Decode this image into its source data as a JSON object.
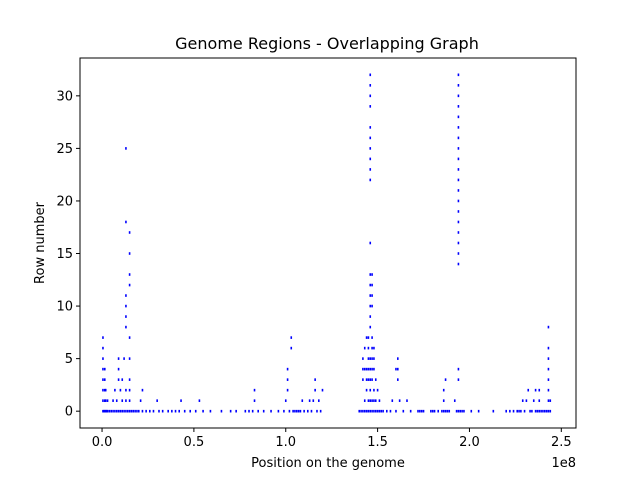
{
  "chart_data": {
    "type": "scatter",
    "title": "Genome Regions - Overlapping Graph",
    "xlabel": "Position on the genome",
    "ylabel": "Row number",
    "x_offset_label": "1e8",
    "x_ticks": [
      0.0,
      0.5,
      1.0,
      1.5,
      2.0,
      2.5
    ],
    "x_tick_labels": [
      "0.0",
      "0.5",
      "1.0",
      "1.5",
      "2.0",
      "2.5"
    ],
    "y_ticks": [
      0,
      5,
      10,
      15,
      20,
      25,
      30
    ],
    "y_tick_labels": [
      "0",
      "5",
      "10",
      "15",
      "20",
      "25",
      "30"
    ],
    "xlim": [
      -0.12,
      2.58
    ],
    "ylim": [
      -1.6,
      33.6
    ],
    "grid": false,
    "marker_color": "#0000ff",
    "series": [
      {
        "points": [
          [
            0.005,
            0
          ],
          [
            0.01,
            0
          ],
          [
            0.015,
            0
          ],
          [
            0.02,
            0
          ],
          [
            0.025,
            0
          ],
          [
            0.03,
            0
          ],
          [
            0.04,
            0
          ],
          [
            0.05,
            0
          ],
          [
            0.06,
            0
          ],
          [
            0.07,
            0
          ],
          [
            0.08,
            0
          ],
          [
            0.09,
            0
          ],
          [
            0.1,
            0
          ],
          [
            0.11,
            0
          ],
          [
            0.12,
            0
          ],
          [
            0.13,
            0
          ],
          [
            0.14,
            0
          ],
          [
            0.15,
            0
          ],
          [
            0.16,
            0
          ],
          [
            0.17,
            0
          ],
          [
            0.005,
            1
          ],
          [
            0.005,
            2
          ],
          [
            0.005,
            3
          ],
          [
            0.005,
            4
          ],
          [
            0.005,
            5
          ],
          [
            0.005,
            6
          ],
          [
            0.005,
            7
          ],
          [
            0.015,
            1
          ],
          [
            0.015,
            2
          ],
          [
            0.015,
            3
          ],
          [
            0.015,
            4
          ],
          [
            0.02,
            1
          ],
          [
            0.02,
            2
          ],
          [
            0.03,
            1
          ],
          [
            0.06,
            1
          ],
          [
            0.07,
            2
          ],
          [
            0.08,
            1
          ],
          [
            0.09,
            3
          ],
          [
            0.09,
            4
          ],
          [
            0.09,
            5
          ],
          [
            0.1,
            2
          ],
          [
            0.11,
            1
          ],
          [
            0.11,
            3
          ],
          [
            0.12,
            5
          ],
          [
            0.13,
            1
          ],
          [
            0.13,
            2
          ],
          [
            0.13,
            8
          ],
          [
            0.13,
            9
          ],
          [
            0.13,
            10
          ],
          [
            0.13,
            11
          ],
          [
            0.13,
            18
          ],
          [
            0.13,
            25
          ],
          [
            0.15,
            1
          ],
          [
            0.15,
            2
          ],
          [
            0.15,
            3
          ],
          [
            0.15,
            5
          ],
          [
            0.15,
            7
          ],
          [
            0.15,
            12
          ],
          [
            0.15,
            13
          ],
          [
            0.15,
            15
          ],
          [
            0.15,
            17
          ],
          [
            0.18,
            0
          ],
          [
            0.19,
            0
          ],
          [
            0.2,
            0
          ],
          [
            0.21,
            1
          ],
          [
            0.22,
            0
          ],
          [
            0.22,
            2
          ],
          [
            0.24,
            0
          ],
          [
            0.26,
            0
          ],
          [
            0.28,
            0
          ],
          [
            0.3,
            1
          ],
          [
            0.31,
            0
          ],
          [
            0.33,
            0
          ],
          [
            0.36,
            0
          ],
          [
            0.38,
            0
          ],
          [
            0.4,
            0
          ],
          [
            0.42,
            0
          ],
          [
            0.43,
            1
          ],
          [
            0.45,
            0
          ],
          [
            0.48,
            0
          ],
          [
            0.51,
            0
          ],
          [
            0.53,
            1
          ],
          [
            0.55,
            0
          ],
          [
            0.59,
            0
          ],
          [
            0.65,
            0
          ],
          [
            0.7,
            0
          ],
          [
            0.73,
            0
          ],
          [
            0.78,
            0
          ],
          [
            0.8,
            0
          ],
          [
            0.82,
            0
          ],
          [
            0.83,
            1
          ],
          [
            0.83,
            2
          ],
          [
            0.85,
            0
          ],
          [
            0.88,
            0
          ],
          [
            0.92,
            0
          ],
          [
            0.96,
            0
          ],
          [
            0.99,
            0
          ],
          [
            1.0,
            1
          ],
          [
            1.01,
            2
          ],
          [
            1.01,
            3
          ],
          [
            1.01,
            4
          ],
          [
            1.02,
            0
          ],
          [
            1.03,
            6
          ],
          [
            1.03,
            7
          ],
          [
            1.04,
            0
          ],
          [
            1.05,
            0
          ],
          [
            1.06,
            0
          ],
          [
            1.07,
            0
          ],
          [
            1.08,
            0
          ],
          [
            1.09,
            1
          ],
          [
            1.1,
            0
          ],
          [
            1.12,
            0
          ],
          [
            1.13,
            1
          ],
          [
            1.14,
            0
          ],
          [
            1.15,
            1
          ],
          [
            1.16,
            2
          ],
          [
            1.16,
            3
          ],
          [
            1.17,
            0
          ],
          [
            1.18,
            1
          ],
          [
            1.19,
            0
          ],
          [
            1.2,
            2
          ],
          [
            1.4,
            0
          ],
          [
            1.41,
            0
          ],
          [
            1.42,
            0
          ],
          [
            1.42,
            3
          ],
          [
            1.42,
            4
          ],
          [
            1.42,
            5
          ],
          [
            1.43,
            0
          ],
          [
            1.43,
            1
          ],
          [
            1.43,
            4
          ],
          [
            1.43,
            6
          ],
          [
            1.44,
            0
          ],
          [
            1.44,
            2
          ],
          [
            1.44,
            3
          ],
          [
            1.44,
            4
          ],
          [
            1.44,
            7
          ],
          [
            1.45,
            0
          ],
          [
            1.45,
            1
          ],
          [
            1.45,
            3
          ],
          [
            1.45,
            4
          ],
          [
            1.45,
            5
          ],
          [
            1.45,
            6
          ],
          [
            1.45,
            7
          ],
          [
            1.46,
            0
          ],
          [
            1.46,
            1
          ],
          [
            1.46,
            2
          ],
          [
            1.46,
            3
          ],
          [
            1.46,
            4
          ],
          [
            1.46,
            5
          ],
          [
            1.46,
            8
          ],
          [
            1.46,
            9
          ],
          [
            1.46,
            10
          ],
          [
            1.46,
            11
          ],
          [
            1.46,
            12
          ],
          [
            1.46,
            13
          ],
          [
            1.46,
            16
          ],
          [
            1.46,
            22
          ],
          [
            1.46,
            23
          ],
          [
            1.46,
            24
          ],
          [
            1.46,
            25
          ],
          [
            1.46,
            26
          ],
          [
            1.46,
            27
          ],
          [
            1.46,
            29
          ],
          [
            1.46,
            30
          ],
          [
            1.46,
            31
          ],
          [
            1.46,
            32
          ],
          [
            1.47,
            0
          ],
          [
            1.47,
            1
          ],
          [
            1.47,
            3
          ],
          [
            1.47,
            4
          ],
          [
            1.47,
            5
          ],
          [
            1.47,
            6
          ],
          [
            1.47,
            7
          ],
          [
            1.47,
            10
          ],
          [
            1.47,
            11
          ],
          [
            1.47,
            12
          ],
          [
            1.47,
            13
          ],
          [
            1.48,
            0
          ],
          [
            1.48,
            1
          ],
          [
            1.48,
            2
          ],
          [
            1.48,
            4
          ],
          [
            1.48,
            5
          ],
          [
            1.48,
            6
          ],
          [
            1.49,
            0
          ],
          [
            1.49,
            1
          ],
          [
            1.49,
            3
          ],
          [
            1.5,
            0
          ],
          [
            1.5,
            2
          ],
          [
            1.51,
            0
          ],
          [
            1.51,
            1
          ],
          [
            1.52,
            0
          ],
          [
            1.53,
            0
          ],
          [
            1.55,
            0
          ],
          [
            1.57,
            0
          ],
          [
            1.58,
            1
          ],
          [
            1.6,
            0
          ],
          [
            1.6,
            4
          ],
          [
            1.61,
            3
          ],
          [
            1.61,
            4
          ],
          [
            1.61,
            5
          ],
          [
            1.62,
            1
          ],
          [
            1.64,
            0
          ],
          [
            1.66,
            1
          ],
          [
            1.68,
            0
          ],
          [
            1.72,
            0
          ],
          [
            1.73,
            0
          ],
          [
            1.74,
            0
          ],
          [
            1.75,
            0
          ],
          [
            1.79,
            0
          ],
          [
            1.8,
            0
          ],
          [
            1.81,
            0
          ],
          [
            1.83,
            0
          ],
          [
            1.85,
            0
          ],
          [
            1.86,
            0
          ],
          [
            1.86,
            1
          ],
          [
            1.86,
            2
          ],
          [
            1.87,
            0
          ],
          [
            1.87,
            3
          ],
          [
            1.88,
            0
          ],
          [
            1.89,
            0
          ],
          [
            1.92,
            1
          ],
          [
            1.93,
            0
          ],
          [
            1.94,
            0
          ],
          [
            1.94,
            3
          ],
          [
            1.94,
            4
          ],
          [
            1.94,
            14
          ],
          [
            1.94,
            15
          ],
          [
            1.94,
            16
          ],
          [
            1.94,
            17
          ],
          [
            1.94,
            18
          ],
          [
            1.94,
            19
          ],
          [
            1.94,
            20
          ],
          [
            1.94,
            21
          ],
          [
            1.94,
            22
          ],
          [
            1.94,
            23
          ],
          [
            1.94,
            24
          ],
          [
            1.94,
            25
          ],
          [
            1.94,
            26
          ],
          [
            1.94,
            27
          ],
          [
            1.94,
            28
          ],
          [
            1.94,
            29
          ],
          [
            1.94,
            30
          ],
          [
            1.94,
            31
          ],
          [
            1.94,
            32
          ],
          [
            1.95,
            0
          ],
          [
            1.96,
            0
          ],
          [
            1.97,
            0
          ],
          [
            2.01,
            0
          ],
          [
            2.05,
            0
          ],
          [
            2.13,
            0
          ],
          [
            2.2,
            0
          ],
          [
            2.22,
            0
          ],
          [
            2.24,
            0
          ],
          [
            2.26,
            0
          ],
          [
            2.27,
            0
          ],
          [
            2.28,
            0
          ],
          [
            2.29,
            1
          ],
          [
            2.3,
            0
          ],
          [
            2.31,
            1
          ],
          [
            2.32,
            2
          ],
          [
            2.33,
            0
          ],
          [
            2.34,
            0
          ],
          [
            2.35,
            1
          ],
          [
            2.36,
            0
          ],
          [
            2.36,
            2
          ],
          [
            2.37,
            0
          ],
          [
            2.38,
            0
          ],
          [
            2.38,
            1
          ],
          [
            2.38,
            2
          ],
          [
            2.39,
            0
          ],
          [
            2.4,
            0
          ],
          [
            2.41,
            0
          ],
          [
            2.42,
            0
          ],
          [
            2.43,
            0
          ],
          [
            2.43,
            1
          ],
          [
            2.43,
            2
          ],
          [
            2.43,
            3
          ],
          [
            2.43,
            4
          ],
          [
            2.43,
            5
          ],
          [
            2.43,
            6
          ],
          [
            2.43,
            8
          ],
          [
            2.44,
            0
          ],
          [
            2.44,
            1
          ]
        ]
      }
    ]
  }
}
